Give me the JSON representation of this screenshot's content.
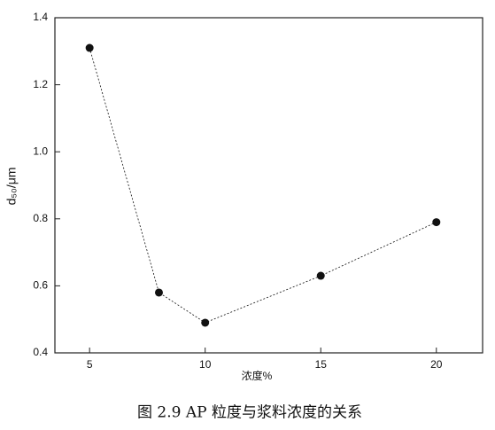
{
  "chart_data": {
    "type": "line",
    "x_label": "浓度%",
    "y_label": "d₅₀/μm",
    "caption": "图 2.9 AP 粒度与浆料浓度的关系",
    "x": [
      5,
      8,
      10,
      15,
      20
    ],
    "values": [
      1.31,
      0.58,
      0.49,
      0.63,
      0.79
    ],
    "color": "#111111",
    "xlim": [
      3.5,
      22
    ],
    "xticks": [
      5,
      10,
      15,
      20
    ],
    "ylim": [
      0.4,
      1.4
    ],
    "yticks": [
      0.4,
      0.6,
      0.8,
      {
        "value": 1,
        "label": "1.0"
      },
      1.2,
      1.4
    ]
  }
}
